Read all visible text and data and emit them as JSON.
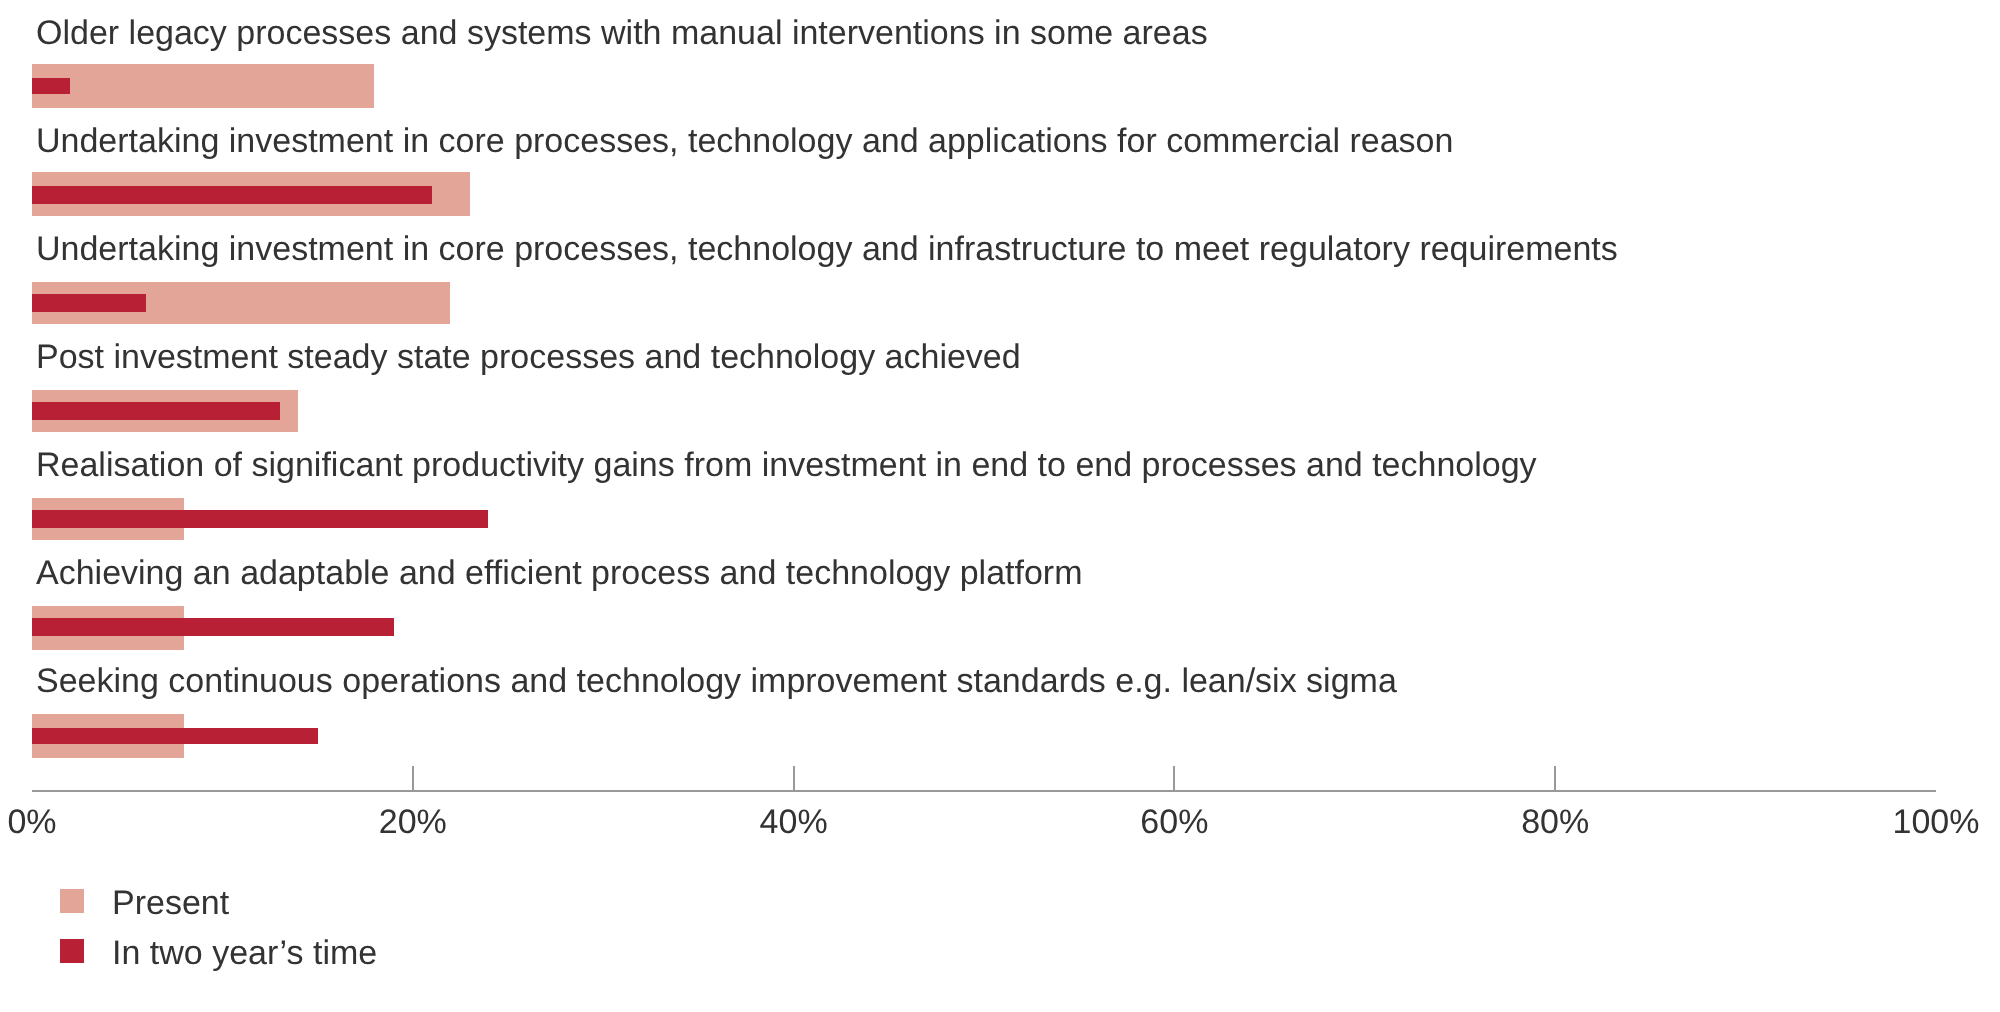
{
  "chart_data": {
    "type": "bar",
    "orientation": "horizontal",
    "categories": [
      "Older legacy processes and systems with manual interventions in some areas",
      "Undertaking investment in core processes, technology and applications for commercial reason",
      "Undertaking investment in core processes, technology and infrastructure to meet regulatory requirements",
      "Post investment steady state processes and technology achieved",
      "Realisation of significant productivity gains from investment in end to end processes and technology",
      "Achieving an adaptable and efficient process and technology platform",
      "Seeking continuous operations and technology improvement standards e.g. lean/six sigma"
    ],
    "series": [
      {
        "name": "Present",
        "color": "#e3a597",
        "values": [
          18,
          23,
          22,
          14,
          8,
          8,
          8
        ]
      },
      {
        "name": "In two year’s time",
        "color": "#b82035",
        "values": [
          2,
          21,
          6,
          13,
          24,
          19,
          15
        ]
      }
    ],
    "xlim": [
      0,
      100
    ],
    "xticks": [
      {
        "value": 0,
        "label": "0%"
      },
      {
        "value": 20,
        "label": "20%"
      },
      {
        "value": 40,
        "label": "40%"
      },
      {
        "value": 60,
        "label": "60%"
      },
      {
        "value": 80,
        "label": "80%"
      },
      {
        "value": 100,
        "label": "100%"
      }
    ],
    "grid": false,
    "legend": "bottom left"
  }
}
